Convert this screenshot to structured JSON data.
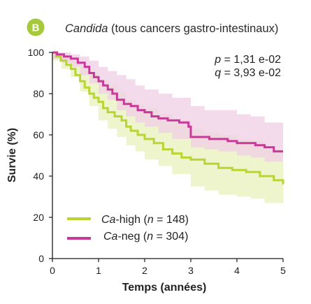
{
  "panel": {
    "letter": "B"
  },
  "title": {
    "italic_part": "Candida",
    "rest": " (tous cancers gastro-intestinaux)"
  },
  "stats": {
    "p": {
      "sym": "p",
      "text": " = 1,31 e-02"
    },
    "q": {
      "sym": "q",
      "text": " = 3,93 e-02"
    }
  },
  "chart_data": {
    "type": "line",
    "subtype": "kaplan-meier survival curves with confidence bands",
    "xlabel": "Temps (années)",
    "ylabel": "Survie (%)",
    "xlim": [
      0,
      5
    ],
    "ylim": [
      0,
      100
    ],
    "xticks": [
      0,
      1,
      2,
      3,
      4,
      5
    ],
    "yticks": [
      0,
      20,
      40,
      60,
      80,
      100
    ],
    "grid": false,
    "legend_position": "bottom-left",
    "series": [
      {
        "name": "Ca-high (n = 148)",
        "legend_italic": "Ca",
        "legend_mid": "-high (",
        "legend_n_sym": "n",
        "legend_n_val": " = 148)",
        "color": "#b9d531",
        "band_color": "#e8f0bb",
        "points": [
          [
            0,
            100
          ],
          [
            0.08,
            98
          ],
          [
            0.18,
            96
          ],
          [
            0.3,
            94
          ],
          [
            0.4,
            92
          ],
          [
            0.5,
            89
          ],
          [
            0.6,
            86
          ],
          [
            0.7,
            83
          ],
          [
            0.8,
            80
          ],
          [
            0.9,
            78
          ],
          [
            1.0,
            76
          ],
          [
            1.1,
            73
          ],
          [
            1.2,
            71
          ],
          [
            1.35,
            69
          ],
          [
            1.5,
            67
          ],
          [
            1.6,
            64
          ],
          [
            1.7,
            62
          ],
          [
            1.85,
            60
          ],
          [
            2.0,
            58
          ],
          [
            2.2,
            56
          ],
          [
            2.4,
            53
          ],
          [
            2.6,
            51
          ],
          [
            2.8,
            49
          ],
          [
            3.0,
            48
          ],
          [
            3.3,
            46
          ],
          [
            3.6,
            44
          ],
          [
            3.9,
            43
          ],
          [
            4.2,
            42
          ],
          [
            4.5,
            40
          ],
          [
            4.8,
            38
          ],
          [
            5.0,
            36
          ]
        ],
        "band_upper": [
          [
            0,
            100
          ],
          [
            0.2,
            98
          ],
          [
            0.4,
            96
          ],
          [
            0.6,
            93
          ],
          [
            0.8,
            90
          ],
          [
            1.0,
            87
          ],
          [
            1.2,
            84
          ],
          [
            1.4,
            81
          ],
          [
            1.6,
            77
          ],
          [
            1.8,
            75
          ],
          [
            2.0,
            73
          ],
          [
            2.3,
            70
          ],
          [
            2.6,
            67
          ],
          [
            3.0,
            63
          ],
          [
            3.3,
            61
          ],
          [
            3.6,
            60
          ],
          [
            4.0,
            58
          ],
          [
            4.3,
            57
          ],
          [
            4.6,
            53
          ],
          [
            5.0,
            48
          ]
        ],
        "band_lower": [
          [
            0,
            96
          ],
          [
            0.2,
            92
          ],
          [
            0.4,
            88
          ],
          [
            0.6,
            81
          ],
          [
            0.8,
            74
          ],
          [
            1.0,
            67
          ],
          [
            1.2,
            63
          ],
          [
            1.4,
            59
          ],
          [
            1.6,
            55
          ],
          [
            1.8,
            52
          ],
          [
            2.0,
            48
          ],
          [
            2.3,
            45
          ],
          [
            2.6,
            41
          ],
          [
            3.0,
            35
          ],
          [
            3.3,
            33
          ],
          [
            3.6,
            31
          ],
          [
            4.0,
            30
          ],
          [
            4.3,
            29
          ],
          [
            4.6,
            27
          ],
          [
            5.0,
            24
          ]
        ]
      },
      {
        "name": "Ca-neg (n = 304)",
        "legend_italic": "Ca",
        "legend_mid": "-neg (",
        "legend_n_sym": "n",
        "legend_n_val": " = 304)",
        "color": "#c8399a",
        "band_color": "#efcfe6",
        "points": [
          [
            0,
            100
          ],
          [
            0.1,
            99
          ],
          [
            0.25,
            98
          ],
          [
            0.4,
            97
          ],
          [
            0.55,
            95
          ],
          [
            0.7,
            93
          ],
          [
            0.8,
            90
          ],
          [
            0.9,
            88
          ],
          [
            1.0,
            86
          ],
          [
            1.1,
            84
          ],
          [
            1.2,
            82
          ],
          [
            1.3,
            80
          ],
          [
            1.4,
            77
          ],
          [
            1.55,
            75
          ],
          [
            1.7,
            74
          ],
          [
            1.85,
            72
          ],
          [
            2.0,
            71
          ],
          [
            2.15,
            69
          ],
          [
            2.3,
            68
          ],
          [
            2.5,
            67
          ],
          [
            2.75,
            66
          ],
          [
            2.95,
            64
          ],
          [
            3.0,
            59
          ],
          [
            3.2,
            59
          ],
          [
            3.4,
            58
          ],
          [
            3.6,
            58
          ],
          [
            3.8,
            57
          ],
          [
            4.0,
            56
          ],
          [
            4.2,
            56
          ],
          [
            4.4,
            55
          ],
          [
            4.6,
            54
          ],
          [
            4.8,
            52
          ],
          [
            5.0,
            52
          ]
        ],
        "band_upper": [
          [
            0,
            100
          ],
          [
            0.2,
            100
          ],
          [
            0.4,
            99
          ],
          [
            0.6,
            98
          ],
          [
            0.8,
            96
          ],
          [
            1.0,
            93
          ],
          [
            1.2,
            91
          ],
          [
            1.4,
            89
          ],
          [
            1.6,
            87
          ],
          [
            1.8,
            84
          ],
          [
            2.0,
            82
          ],
          [
            2.3,
            80
          ],
          [
            2.6,
            78
          ],
          [
            3.0,
            74
          ],
          [
            3.3,
            72
          ],
          [
            3.6,
            72
          ],
          [
            4.0,
            70
          ],
          [
            4.3,
            69
          ],
          [
            4.6,
            66
          ],
          [
            5.0,
            61
          ]
        ],
        "band_lower": [
          [
            0,
            97
          ],
          [
            0.2,
            95
          ],
          [
            0.4,
            93
          ],
          [
            0.6,
            89
          ],
          [
            0.8,
            85
          ],
          [
            1.0,
            80
          ],
          [
            1.2,
            77
          ],
          [
            1.4,
            72
          ],
          [
            1.6,
            69
          ],
          [
            1.8,
            66
          ],
          [
            2.0,
            64
          ],
          [
            2.3,
            61
          ],
          [
            2.6,
            58
          ],
          [
            3.0,
            54
          ],
          [
            3.3,
            53
          ],
          [
            3.6,
            52
          ],
          [
            4.0,
            50
          ],
          [
            4.3,
            49
          ],
          [
            4.6,
            47
          ],
          [
            5.0,
            43
          ]
        ]
      }
    ]
  }
}
